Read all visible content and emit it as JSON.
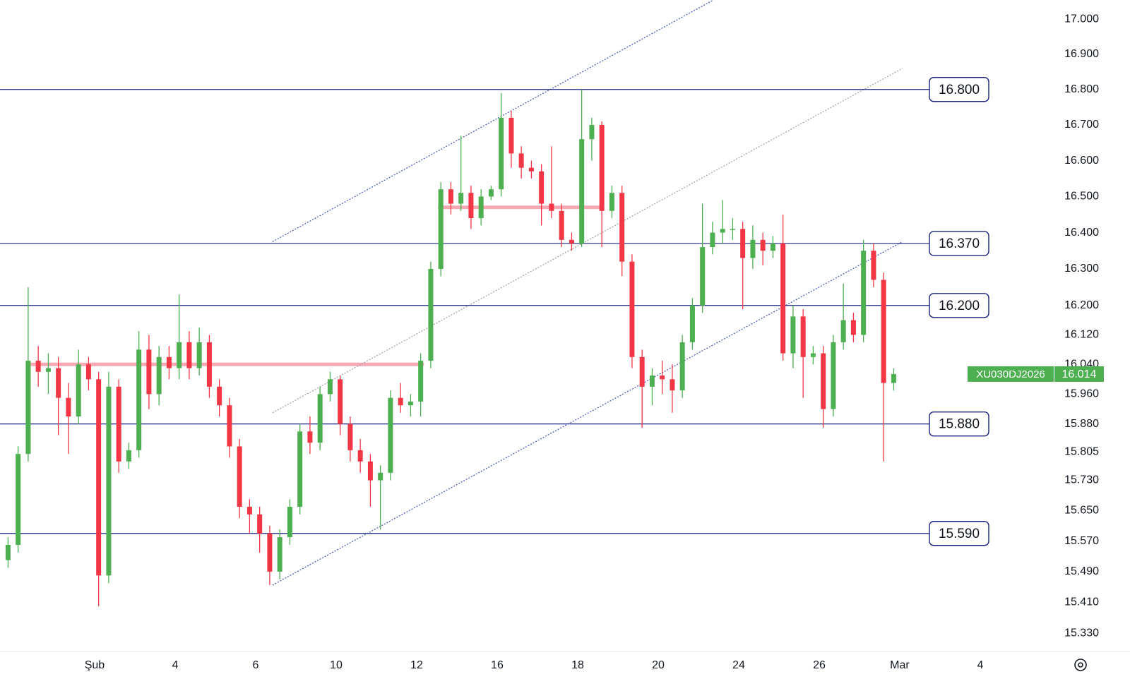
{
  "chart_data": {
    "type": "candlestick",
    "symbol": "XU030DJ2026",
    "x": [
      -2.15,
      -1.9,
      -1.65,
      -1.4,
      -1.15,
      -0.9,
      -0.65,
      -0.4,
      -0.15,
      0.1,
      0.35,
      0.6,
      0.85,
      1.1,
      1.35,
      1.6,
      1.85,
      2.1,
      2.35,
      2.6,
      2.85,
      3.1,
      3.35,
      3.6,
      3.85,
      4.1,
      4.35,
      4.6,
      4.85,
      5.1,
      5.35,
      5.6,
      5.85,
      6.1,
      6.35,
      6.6,
      6.85,
      7.1,
      7.35,
      7.6,
      7.85,
      8.1,
      8.35,
      8.6,
      8.85,
      9.1,
      9.35,
      9.6,
      9.85,
      10.1,
      10.35,
      10.6,
      10.85,
      11.1,
      11.35,
      11.6,
      11.85,
      12.1,
      12.35,
      12.6,
      12.85,
      13.1,
      13.35,
      13.6,
      13.85,
      14.1,
      14.35,
      14.6,
      14.85,
      15.1,
      15.35,
      15.6,
      15.85,
      16.1,
      16.35,
      16.6,
      16.85,
      17.1,
      17.35,
      17.6,
      17.85,
      18.1,
      18.35,
      18.6,
      18.85,
      19.1,
      19.35,
      19.6,
      19.85
    ],
    "open": [
      15.52,
      15.56,
      15.8,
      16.05,
      16.02,
      16.03,
      15.95,
      15.9,
      16.04,
      16.0,
      15.48,
      15.98,
      15.78,
      15.81,
      16.08,
      15.96,
      16.06,
      16.03,
      16.1,
      16.03,
      16.1,
      15.98,
      15.93,
      15.82,
      15.66,
      15.64,
      15.59,
      15.49,
      15.58,
      15.66,
      15.86,
      15.83,
      15.96,
      16.0,
      15.88,
      15.81,
      15.78,
      15.73,
      15.75,
      15.95,
      15.93,
      15.94,
      16.05,
      16.3,
      16.52,
      16.48,
      16.51,
      16.44,
      16.5,
      16.52,
      16.72,
      16.62,
      16.58,
      16.57,
      16.48,
      16.46,
      16.38,
      16.37,
      16.66,
      16.7,
      16.46,
      16.51,
      16.32,
      16.06,
      15.98,
      16.01,
      16.0,
      15.97,
      16.1,
      16.2,
      16.36,
      16.4,
      16.41,
      16.41,
      16.33,
      16.38,
      16.35,
      16.37,
      16.07,
      16.17,
      16.06,
      16.07,
      15.92,
      16.1,
      16.16,
      16.12,
      16.35,
      16.27,
      15.99
    ],
    "high": [
      15.58,
      15.82,
      16.25,
      16.09,
      16.07,
      16.06,
      15.99,
      16.08,
      16.06,
      16.02,
      16.02,
      16.0,
      15.83,
      16.13,
      16.12,
      16.09,
      16.09,
      16.23,
      16.13,
      16.14,
      16.12,
      16.0,
      15.95,
      15.84,
      15.68,
      15.66,
      15.61,
      15.6,
      15.68,
      15.88,
      15.9,
      15.98,
      16.02,
      16.01,
      15.9,
      15.84,
      15.8,
      15.77,
      15.97,
      15.99,
      15.96,
      16.07,
      16.32,
      16.54,
      16.54,
      16.67,
      16.53,
      16.52,
      16.53,
      16.79,
      16.74,
      16.64,
      16.6,
      16.59,
      16.64,
      16.48,
      16.4,
      16.8,
      16.72,
      16.71,
      16.53,
      16.53,
      16.34,
      16.08,
      16.03,
      16.05,
      16.04,
      16.12,
      16.22,
      16.48,
      16.43,
      16.49,
      16.44,
      16.43,
      16.42,
      16.4,
      16.39,
      16.45,
      16.2,
      16.19,
      16.09,
      16.09,
      16.12,
      16.26,
      16.18,
      16.38,
      16.37,
      16.29,
      16.03
    ],
    "low": [
      15.5,
      15.54,
      15.78,
      15.98,
      15.96,
      15.85,
      15.8,
      15.88,
      15.97,
      15.4,
      15.46,
      15.75,
      15.76,
      15.79,
      15.92,
      15.93,
      16.0,
      16.0,
      16.0,
      16.01,
      15.95,
      15.9,
      15.79,
      15.63,
      15.59,
      15.54,
      15.455,
      15.47,
      15.56,
      15.64,
      15.8,
      15.81,
      15.94,
      15.85,
      15.78,
      15.75,
      15.66,
      15.6,
      15.73,
      15.91,
      15.9,
      15.9,
      16.03,
      16.28,
      16.45,
      16.46,
      16.41,
      16.42,
      16.49,
      16.5,
      16.58,
      16.55,
      16.55,
      16.42,
      16.44,
      16.36,
      16.35,
      16.36,
      16.6,
      16.36,
      16.44,
      16.28,
      16.03,
      15.87,
      15.93,
      15.96,
      15.91,
      15.95,
      16.08,
      16.18,
      16.34,
      16.37,
      16.38,
      16.19,
      16.3,
      16.31,
      16.33,
      16.05,
      16.03,
      15.95,
      16.04,
      15.87,
      15.9,
      16.08,
      16.1,
      16.1,
      16.25,
      15.78,
      15.97
    ],
    "close": [
      15.56,
      15.8,
      16.05,
      16.02,
      16.03,
      15.95,
      15.9,
      16.04,
      16.0,
      15.48,
      15.98,
      15.78,
      15.81,
      16.08,
      15.96,
      16.06,
      16.03,
      16.1,
      16.03,
      16.1,
      15.98,
      15.93,
      15.82,
      15.66,
      15.64,
      15.59,
      15.49,
      15.58,
      15.66,
      15.86,
      15.83,
      15.96,
      16.0,
      15.88,
      15.81,
      15.78,
      15.73,
      15.75,
      15.95,
      15.93,
      15.94,
      16.05,
      16.3,
      16.52,
      16.48,
      16.51,
      16.44,
      16.5,
      16.52,
      16.72,
      16.62,
      16.58,
      16.57,
      16.48,
      16.46,
      16.38,
      16.37,
      16.66,
      16.7,
      16.46,
      16.51,
      16.32,
      16.06,
      15.98,
      16.01,
      16.0,
      15.97,
      16.1,
      16.2,
      16.36,
      16.4,
      16.41,
      16.41,
      16.33,
      16.38,
      16.35,
      16.37,
      16.07,
      16.17,
      16.06,
      16.07,
      15.92,
      16.1,
      16.16,
      16.12,
      16.35,
      16.27,
      15.99,
      16.014
    ],
    "up_color": "#4caf50",
    "down_color": "#f23645",
    "log_scale": true,
    "ylim": [
      15.285,
      17.055
    ],
    "yticks": [
      {
        "value": 17,
        "label": "17.000"
      },
      {
        "value": 16.9,
        "label": "16.900"
      },
      {
        "value": 16.8,
        "label": "16.800"
      },
      {
        "value": 16.7,
        "label": "16.700"
      },
      {
        "value": 16.6,
        "label": "16.600"
      },
      {
        "value": 16.5,
        "label": "16.500"
      },
      {
        "value": 16.4,
        "label": "16.400"
      },
      {
        "value": 16.3,
        "label": "16.300"
      },
      {
        "value": 16.2,
        "label": "16.200"
      },
      {
        "value": 16.12,
        "label": "16.120"
      },
      {
        "value": 16.04,
        "label": "16.040"
      },
      {
        "value": 15.96,
        "label": "15.960"
      },
      {
        "value": 15.88,
        "label": "15.880"
      },
      {
        "value": 15.805,
        "label": "15.805"
      },
      {
        "value": 15.73,
        "label": "15.730"
      },
      {
        "value": 15.65,
        "label": "15.650"
      },
      {
        "value": 15.57,
        "label": "15.570"
      },
      {
        "value": 15.49,
        "label": "15.490"
      },
      {
        "value": 15.41,
        "label": "15.410"
      },
      {
        "value": 15.33,
        "label": "15.330"
      }
    ],
    "xlim": [
      -2.35,
      23.79
    ],
    "xticks": [
      {
        "value": 0,
        "label": "Şub"
      },
      {
        "value": 2,
        "label": "4"
      },
      {
        "value": 4,
        "label": "6"
      },
      {
        "value": 6,
        "label": "10"
      },
      {
        "value": 8,
        "label": "12"
      },
      {
        "value": 10,
        "label": "16"
      },
      {
        "value": 12,
        "label": "18"
      },
      {
        "value": 14,
        "label": "20"
      },
      {
        "value": 16,
        "label": "24"
      },
      {
        "value": 18,
        "label": "26"
      },
      {
        "value": 20,
        "label": "Mar"
      },
      {
        "value": 22,
        "label": "4"
      }
    ],
    "levels": [
      {
        "value": 16.8,
        "label": "16.800"
      },
      {
        "value": 16.37,
        "label": "16.370"
      },
      {
        "value": 16.2,
        "label": "16.200"
      },
      {
        "value": 15.88,
        "label": "15.880"
      },
      {
        "value": 15.59,
        "label": "15.590"
      }
    ],
    "level_color": "#1a237e",
    "zones": [
      {
        "y": 16.04,
        "x": [
          -1.65,
          8.18
        ]
      },
      {
        "y": 16.47,
        "x": [
          8.53,
          12.56
        ]
      }
    ],
    "zone_color": "#f7a9b3",
    "trendlines": [
      {
        "points": [
          [
            4.42,
            16.375
          ],
          [
            15.37,
            17.055
          ]
        ],
        "color": "#3f51b5"
      },
      {
        "points": [
          [
            4.42,
            15.455
          ],
          [
            20.07,
            16.375
          ]
        ],
        "color": "#3f51b5"
      },
      {
        "points": [
          [
            4.42,
            15.91
          ],
          [
            20.07,
            16.86
          ]
        ],
        "color": "#9e9e9e"
      }
    ]
  }
}
